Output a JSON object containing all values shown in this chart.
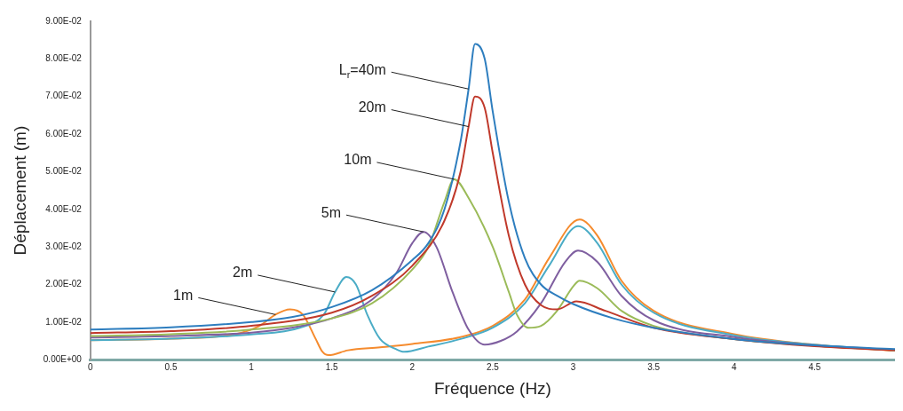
{
  "chart_data": {
    "type": "line",
    "xlabel": "Fréquence (Hz)",
    "ylabel": "Déplacement (m)",
    "xlim": [
      0,
      5
    ],
    "ylim": [
      0,
      0.09
    ],
    "xticks": [
      0,
      0.5,
      1,
      1.5,
      2,
      2.5,
      3,
      3.5,
      4,
      4.5
    ],
    "yticks": [
      {
        "value": 0,
        "label": "0.00E+00"
      },
      {
        "value": 0.01,
        "label": "1.00E-02"
      },
      {
        "value": 0.02,
        "label": "2.00E-02"
      },
      {
        "value": 0.03,
        "label": "3.00E-02"
      },
      {
        "value": 0.04,
        "label": "4.00E-02"
      },
      {
        "value": 0.05,
        "label": "5.00E-02"
      },
      {
        "value": 0.06,
        "label": "6.00E-02"
      },
      {
        "value": 0.07,
        "label": "7.00E-02"
      },
      {
        "value": 0.08,
        "label": "8.00E-02"
      },
      {
        "value": 0.09,
        "label": "9.00E-02"
      }
    ],
    "grid": false,
    "legend": false,
    "marker": "none",
    "line_style": "solid",
    "series": [
      {
        "color": "#2e7ebf",
        "x": [
          0,
          0.5,
          1,
          1.25,
          1.5,
          1.75,
          2,
          2.1,
          2.2,
          2.3,
          2.35,
          2.39,
          2.45,
          2.5,
          2.6,
          2.7,
          2.8,
          2.9,
          3,
          3.25,
          3.5,
          4,
          4.5,
          5
        ],
        "values": [
          0.008,
          0.0086,
          0.01,
          0.0113,
          0.014,
          0.0185,
          0.0265,
          0.031,
          0.04,
          0.058,
          0.072,
          0.084,
          0.08,
          0.066,
          0.042,
          0.027,
          0.02,
          0.017,
          0.0148,
          0.011,
          0.0085,
          0.0055,
          0.0038,
          0.0028
        ]
      },
      {
        "color": "#c0392b",
        "x": [
          0,
          0.5,
          1,
          1.5,
          1.75,
          2,
          2.2,
          2.3,
          2.35,
          2.39,
          2.45,
          2.5,
          2.6,
          2.7,
          2.8,
          2.9,
          3.02,
          3.2,
          3.5,
          4,
          4.5,
          5
        ],
        "values": [
          0.0071,
          0.0076,
          0.009,
          0.0125,
          0.017,
          0.025,
          0.037,
          0.05,
          0.062,
          0.07,
          0.067,
          0.055,
          0.033,
          0.02,
          0.0145,
          0.0134,
          0.0155,
          0.013,
          0.0085,
          0.0055,
          0.0036,
          0.0025
        ]
      },
      {
        "color": "#9bbb59",
        "x": [
          0,
          0.5,
          1,
          1.5,
          1.75,
          2,
          2.1,
          2.2,
          2.26,
          2.35,
          2.5,
          2.6,
          2.65,
          2.72,
          2.8,
          2.9,
          3,
          3.04,
          3.15,
          3.3,
          3.5,
          4,
          4.5,
          5
        ],
        "values": [
          0.0063,
          0.0068,
          0.008,
          0.011,
          0.015,
          0.024,
          0.03,
          0.042,
          0.048,
          0.043,
          0.03,
          0.018,
          0.012,
          0.0085,
          0.009,
          0.013,
          0.0195,
          0.021,
          0.019,
          0.013,
          0.009,
          0.0055,
          0.0037,
          0.0025
        ]
      },
      {
        "color": "#7f5fa0",
        "x": [
          0,
          0.5,
          1,
          1.25,
          1.5,
          1.75,
          1.9,
          2,
          2.07,
          2.15,
          2.25,
          2.35,
          2.45,
          2.55,
          2.65,
          2.8,
          2.95,
          3.03,
          3.15,
          3.3,
          3.5,
          4,
          4.5,
          5
        ],
        "values": [
          0.0059,
          0.0063,
          0.0072,
          0.0085,
          0.011,
          0.016,
          0.023,
          0.031,
          0.034,
          0.03,
          0.018,
          0.008,
          0.004,
          0.005,
          0.0075,
          0.015,
          0.026,
          0.029,
          0.026,
          0.017,
          0.0105,
          0.006,
          0.0038,
          0.0026
        ]
      },
      {
        "color": "#4bacc6",
        "x": [
          0,
          0.5,
          1,
          1.3,
          1.45,
          1.52,
          1.59,
          1.65,
          1.72,
          1.8,
          1.9,
          1.95,
          2.1,
          2.3,
          2.5,
          2.7,
          2.85,
          3.03,
          3.15,
          3.3,
          3.5,
          4,
          4.5,
          5
        ],
        "values": [
          0.0052,
          0.0056,
          0.0067,
          0.0085,
          0.012,
          0.018,
          0.022,
          0.02,
          0.012,
          0.0055,
          0.0028,
          0.0021,
          0.0035,
          0.0055,
          0.0085,
          0.015,
          0.025,
          0.0355,
          0.031,
          0.02,
          0.0125,
          0.0065,
          0.004,
          0.0025
        ]
      },
      {
        "color": "#f58b2e",
        "x": [
          0,
          0.5,
          0.9,
          1.05,
          1.15,
          1.24,
          1.32,
          1.4,
          1.44,
          1.48,
          1.6,
          1.8,
          2,
          2.3,
          2.5,
          2.7,
          2.85,
          3.04,
          3.15,
          3.3,
          3.5,
          4,
          4.5,
          5
        ],
        "values": [
          0.0052,
          0.0056,
          0.0068,
          0.009,
          0.012,
          0.0134,
          0.012,
          0.0055,
          0.0022,
          0.0012,
          0.0025,
          0.0033,
          0.0042,
          0.006,
          0.009,
          0.016,
          0.027,
          0.0373,
          0.033,
          0.021,
          0.013,
          0.0068,
          0.004,
          0.0024
        ]
      }
    ],
    "annotations": [
      {
        "text": "L$_{r}$=40m",
        "x": 2.35,
        "y": 0.072
      },
      {
        "text": "20m",
        "x": 2.35,
        "y": 0.062
      },
      {
        "text": "10m",
        "x": 2.26,
        "y": 0.048
      },
      {
        "text": "5m",
        "x": 2.07,
        "y": 0.034
      },
      {
        "text": "2m",
        "x": 1.52,
        "y": 0.018
      },
      {
        "text": "1m",
        "x": 1.15,
        "y": 0.012
      }
    ]
  }
}
